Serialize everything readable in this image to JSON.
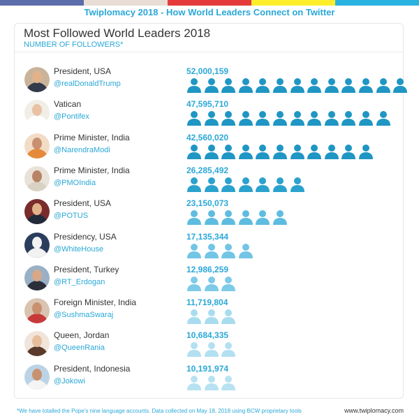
{
  "banner_title": "Twiplomacy 2018 - How World Leaders Connect on Twitter",
  "stripe_colors": [
    "#5b6eab",
    "#e8ded5",
    "#e53a3a",
    "#ffee2b",
    "#2ab3e0"
  ],
  "chart_data": {
    "type": "bar",
    "title": "Most Followed World Leaders 2018",
    "subtitle": "NUMBER OF FOLLOWERS*",
    "series_unit": "people-icon pictograph (one icon ≈ 4,000,000 followers)",
    "categories": [
      "@realDonaldTrump",
      "@Pontifex",
      "@NarendraModi",
      "@PMOIndia",
      "@POTUS",
      "@WhiteHouse",
      "@RT_Erdogan",
      "@SushmaSwaraj",
      "@QueenRania",
      "@Jokowi"
    ],
    "values": [
      52000159,
      47595710,
      42560020,
      26285492,
      23150073,
      17135344,
      12986259,
      11719804,
      10684335,
      10191974
    ],
    "icon_scale": 4000000
  },
  "leaders": [
    {
      "role": "President, USA",
      "handle": "@realDonaldTrump",
      "value_label": "52,000,159",
      "value": 52000159,
      "icon_color": "#1f96c4",
      "avatar_bg": "#c9b49a",
      "avatar_suit": "#333a4a",
      "avatar_face": "#e2b28a"
    },
    {
      "role": "Vatican",
      "handle": "@Pontifex",
      "value_label": "47,595,710",
      "value": 47595710,
      "icon_color": "#1f96c4",
      "avatar_bg": "#f0eee6",
      "avatar_suit": "#ffffff",
      "avatar_face": "#e8c2a2"
    },
    {
      "role": "Prime Minister, India",
      "handle": "@NarendraModi",
      "value_label": "42,560,020",
      "value": 42560020,
      "icon_color": "#1f96c4",
      "avatar_bg": "#f3dcc6",
      "avatar_suit": "#e58a3a",
      "avatar_face": "#c99070"
    },
    {
      "role": "Prime Minister, India",
      "handle": "@PMOIndia",
      "value_label": "26,285,492",
      "value": 26285492,
      "icon_color": "#2aa2cd",
      "avatar_bg": "#e9e2d8",
      "avatar_suit": "#d9d2c4",
      "avatar_face": "#b88465"
    },
    {
      "role": "President, USA",
      "handle": "@POTUS",
      "value_label": "23,150,073",
      "value": 23150073,
      "icon_color": "#5ebce0",
      "avatar_bg": "#7a2c2c",
      "avatar_suit": "#222a3a",
      "avatar_face": "#e2b28a"
    },
    {
      "role": "Presidency, USA",
      "handle": "@WhiteHouse",
      "value_label": "17,135,344",
      "value": 17135344,
      "icon_color": "#72c5e5",
      "avatar_bg": "#2b3d5c",
      "avatar_suit": "#f2f2f2",
      "avatar_face": "#f2f2f2"
    },
    {
      "role": "President, Turkey",
      "handle": "@RT_Erdogan",
      "value_label": "12,986,259",
      "value": 12986259,
      "icon_color": "#7ecbe8",
      "avatar_bg": "#9ab0c4",
      "avatar_suit": "#2a2f3a",
      "avatar_face": "#d8a888"
    },
    {
      "role": "Foreign Minister, India",
      "handle": "@SushmaSwaraj",
      "value_label": "11,719,804",
      "value": 11719804,
      "icon_color": "#a9dcef",
      "avatar_bg": "#d8c4b0",
      "avatar_suit": "#c83a3a",
      "avatar_face": "#c99070"
    },
    {
      "role": "Queen, Jordan",
      "handle": "@QueenRania",
      "value_label": "10,684,335",
      "value": 10684335,
      "icon_color": "#b3e0f1",
      "avatar_bg": "#f1e4da",
      "avatar_suit": "#5a3a2a",
      "avatar_face": "#e6be9c"
    },
    {
      "role": "President, Indonesia",
      "handle": "@Jokowi",
      "value_label": "10,191,974",
      "value": 10191974,
      "icon_color": "#b8e2f2",
      "avatar_bg": "#bcd3e6",
      "avatar_suit": "#f4f4f4",
      "avatar_face": "#c79270"
    }
  ],
  "footnote": "*We have totalled the Pope's nine language accounts. Data collected on May 18, 2018 using  BCW proprietary tools",
  "website": "www.twiplomacy.com"
}
